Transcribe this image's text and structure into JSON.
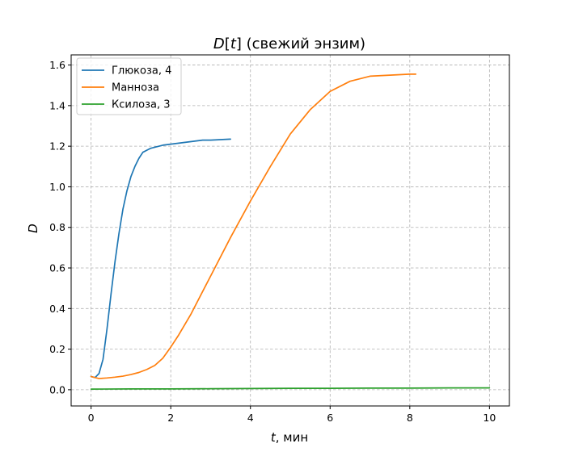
{
  "chart_data": {
    "type": "line",
    "title": "D[t] (свежий энзим)",
    "title_parts": {
      "italic": "D",
      "bracket_open": "[",
      "italic_t": "t",
      "bracket_close": "]",
      "rest": " (свежий энзим)"
    },
    "xlabel": "t, мин",
    "xlabel_parts": {
      "italic": "t",
      "rest": ", мин"
    },
    "ylabel": "D",
    "xlim": [
      -0.5,
      10.5
    ],
    "ylim": [
      -0.08,
      1.65
    ],
    "xticks": [
      0,
      2,
      4,
      6,
      8,
      10
    ],
    "xtick_labels": [
      "0",
      "2",
      "4",
      "6",
      "8",
      "10"
    ],
    "yticks": [
      0.0,
      0.2,
      0.4,
      0.6,
      0.8,
      1.0,
      1.2,
      1.4,
      1.6
    ],
    "ytick_labels": [
      "0.0",
      "0.2",
      "0.4",
      "0.6",
      "0.8",
      "1.0",
      "1.2",
      "1.4",
      "1.6"
    ],
    "grid": true,
    "legend_position": "top-left",
    "series": [
      {
        "name": "Глюкоза, 4",
        "color": "#1f77b4",
        "x": [
          0.0,
          0.1,
          0.2,
          0.3,
          0.4,
          0.5,
          0.6,
          0.7,
          0.8,
          0.9,
          1.0,
          1.1,
          1.2,
          1.3,
          1.4,
          1.5,
          1.6,
          1.8,
          2.0,
          2.2,
          2.4,
          2.6,
          2.8,
          3.0,
          3.2,
          3.5
        ],
        "y": [
          0.065,
          0.06,
          0.08,
          0.15,
          0.3,
          0.47,
          0.63,
          0.77,
          0.89,
          0.98,
          1.05,
          1.1,
          1.14,
          1.17,
          1.18,
          1.19,
          1.195,
          1.205,
          1.21,
          1.215,
          1.22,
          1.225,
          1.23,
          1.23,
          1.232,
          1.235
        ]
      },
      {
        "name": "Манноза",
        "color": "#ff7f0e",
        "x": [
          0.0,
          0.2,
          0.4,
          0.6,
          0.8,
          1.0,
          1.2,
          1.4,
          1.6,
          1.8,
          2.0,
          2.2,
          2.5,
          3.0,
          3.5,
          4.0,
          4.5,
          5.0,
          5.5,
          6.0,
          6.5,
          7.0,
          7.5,
          8.0,
          8.15
        ],
        "y": [
          0.065,
          0.055,
          0.058,
          0.062,
          0.067,
          0.075,
          0.085,
          0.1,
          0.12,
          0.155,
          0.21,
          0.27,
          0.37,
          0.56,
          0.75,
          0.93,
          1.1,
          1.26,
          1.38,
          1.47,
          1.52,
          1.545,
          1.55,
          1.555,
          1.555
        ]
      },
      {
        "name": "Ксилоза, 3",
        "color": "#2ca02c",
        "x": [
          0,
          1,
          2,
          3,
          4,
          5,
          6,
          7,
          8,
          9,
          10
        ],
        "y": [
          0.003,
          0.004,
          0.004,
          0.005,
          0.006,
          0.007,
          0.007,
          0.008,
          0.008,
          0.009,
          0.009
        ]
      }
    ]
  }
}
